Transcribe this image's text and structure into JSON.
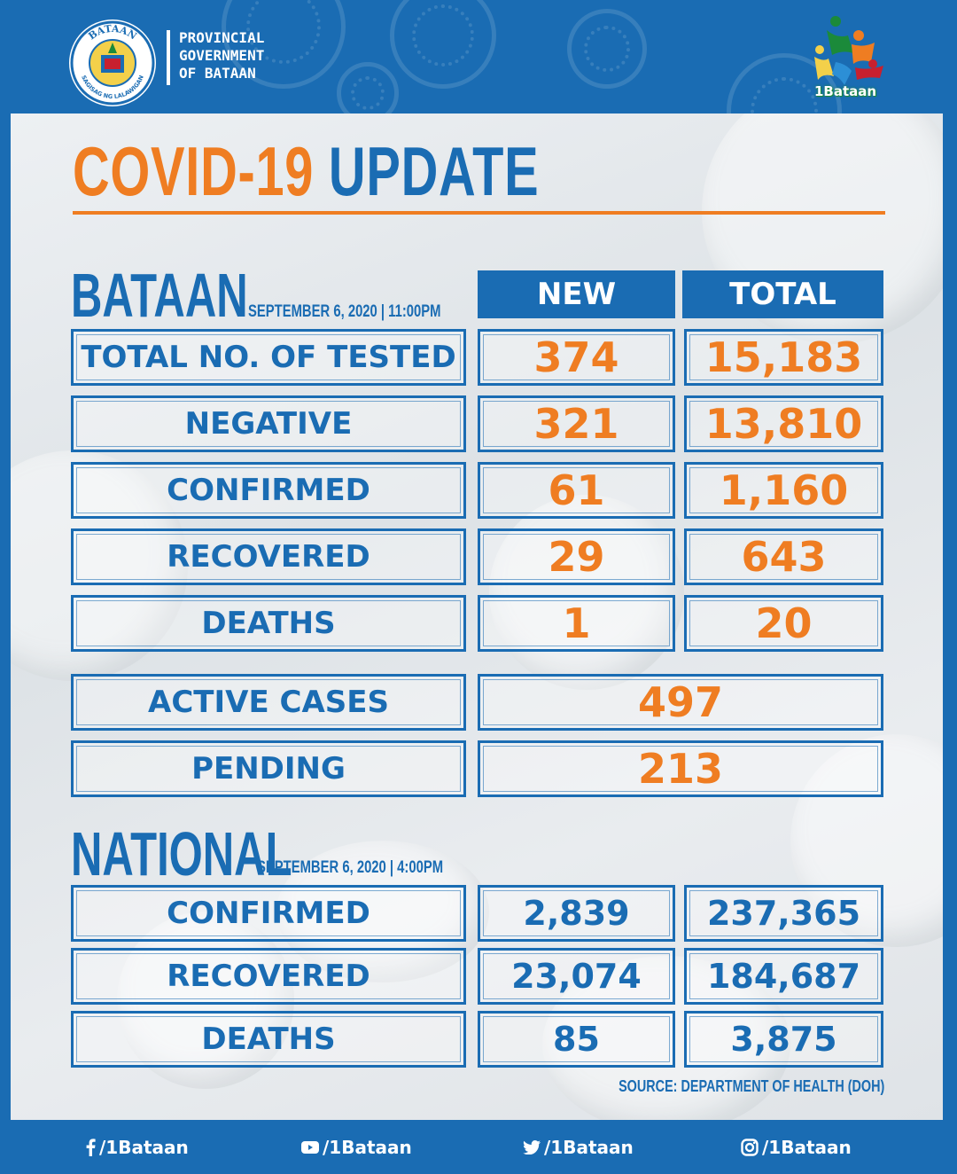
{
  "header": {
    "org_lines": [
      "PROVINCIAL",
      "GOVERNMENT",
      "OF BATAAN"
    ],
    "seal_top_text": "BATAAN",
    "seal_bottom_text": "SAGISAG NG LALAWIGAN",
    "brand_word": "1Bataan"
  },
  "title": {
    "covid": "COVID-19",
    "update": "UPDATE"
  },
  "bataan": {
    "name": "BATAAN",
    "date": "SEPTEMBER 6, 2020  |  11:00PM",
    "col_new": "NEW",
    "col_total": "TOTAL",
    "rows": [
      {
        "label": "TOTAL NO. OF TESTED",
        "new": "374",
        "total": "15,183"
      },
      {
        "label": "NEGATIVE",
        "new": "321",
        "total": "13,810"
      },
      {
        "label": "CONFIRMED",
        "new": "61",
        "total": "1,160"
      },
      {
        "label": "RECOVERED",
        "new": "29",
        "total": "643"
      },
      {
        "label": "DEATHS",
        "new": "1",
        "total": "20"
      }
    ],
    "active_label": "ACTIVE CASES",
    "active_value": "497",
    "pending_label": "PENDING",
    "pending_value": "213"
  },
  "national": {
    "name": "NATIONAL",
    "date": "SEPTEMBER 6, 2020  |  4:00PM",
    "rows": [
      {
        "label": "CONFIRMED",
        "new": "2,839",
        "total": "237,365"
      },
      {
        "label": "RECOVERED",
        "new": "23,074",
        "total": "184,687"
      },
      {
        "label": "DEATHS",
        "new": "85",
        "total": "3,875"
      }
    ]
  },
  "source": "SOURCE: DEPARTMENT OF HEALTH (DOH)",
  "footer": {
    "facebook": "/1Bataan",
    "youtube": "/1Bataan",
    "twitter": "/1Bataan",
    "instagram": "/1Bataan",
    "facebook_icon": "facebook-icon",
    "youtube_icon": "youtube-icon",
    "twitter_icon": "twitter-icon",
    "instagram_icon": "instagram-icon"
  },
  "colors": {
    "brand_blue": "#1a6cb3",
    "accent_orange": "#ef7d22"
  }
}
